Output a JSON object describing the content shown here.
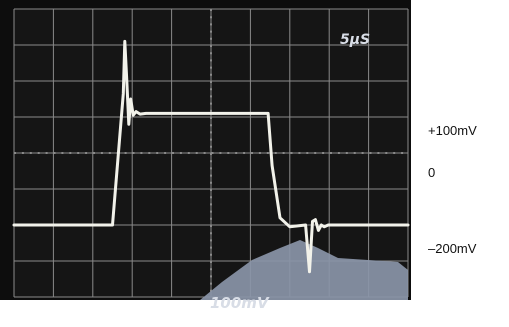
{
  "chart_data": {
    "type": "line",
    "title": "",
    "timebase_label": "5µS",
    "scale_label": "100mV",
    "right_labels": [
      "+100mV",
      "0",
      "–200mV"
    ],
    "x": [
      0,
      10,
      11.1,
      11.25,
      11.45,
      11.65,
      11.85,
      12.1,
      12.4,
      12.8,
      13.4,
      14,
      20,
      25.8,
      26.2,
      27,
      28,
      29.6,
      30,
      30.3,
      30.6,
      30.9,
      31.2,
      31.5,
      31.9,
      32.5,
      33,
      40
    ],
    "y": [
      -200,
      -200,
      165,
      310,
      200,
      80,
      150,
      105,
      115,
      108,
      110,
      110,
      110,
      110,
      -35,
      -180,
      -205,
      -200,
      -330,
      -190,
      -185,
      -215,
      -200,
      -205,
      -200,
      -200,
      -200,
      -200
    ],
    "xlim": [
      0,
      40
    ],
    "ylim": [
      -400,
      400
    ],
    "x_divisions": 10,
    "y_divisions": 8,
    "grid": true,
    "screen_color": "#151515",
    "grid_color": "#8a8a8a",
    "trace_color": "#f2f2ea",
    "glare_color": "#8a95a8"
  }
}
